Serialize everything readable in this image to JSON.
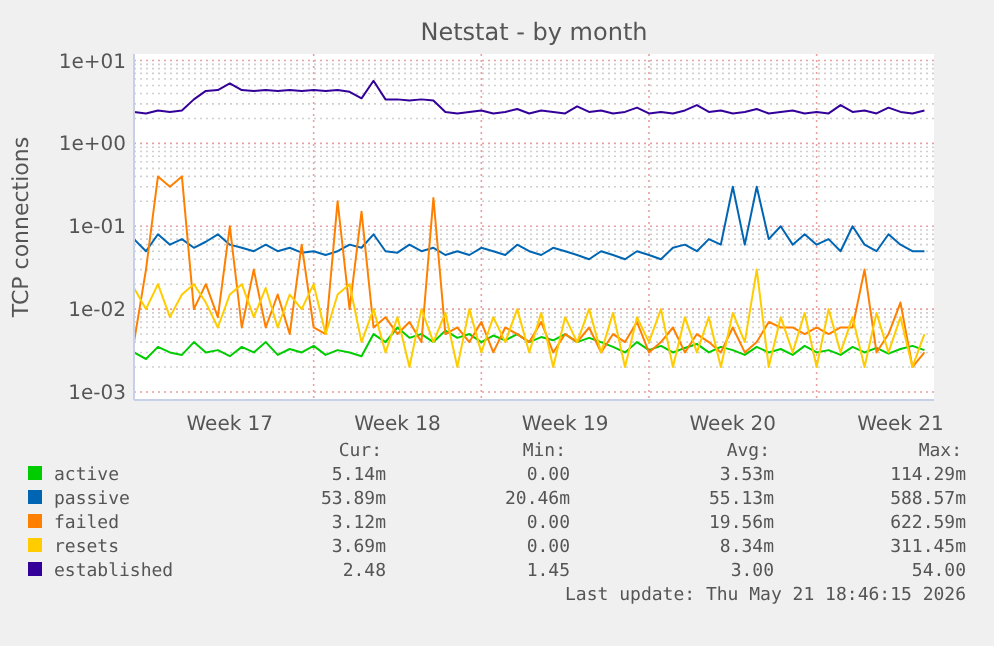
{
  "chart_data": {
    "type": "line",
    "title": "Netstat - by month",
    "ylabel": "TCP connections",
    "log": true,
    "grid": true,
    "legend": "bottom",
    "line_style": "solid",
    "marker": "none",
    "xlim": [
      "2026-04-19T00:00",
      "2026-05-22T09:36"
    ],
    "xticks": [
      {
        "value": "2026-04-23T00:00",
        "label": "Week 17"
      },
      {
        "value": "2026-04-26T12:00",
        "label": null
      },
      {
        "value": "2026-04-30T00:00",
        "label": "Week 18"
      },
      {
        "value": "2026-05-03T12:00",
        "label": null
      },
      {
        "value": "2026-05-07T00:00",
        "label": "Week 19"
      },
      {
        "value": "2026-05-10T12:00",
        "label": null
      },
      {
        "value": "2026-05-14T00:00",
        "label": "Week 20"
      },
      {
        "value": "2026-05-17T12:00",
        "label": null
      },
      {
        "value": "2026-05-21T00:00",
        "label": "Week 21"
      }
    ],
    "ylim": [
      0.0008,
      12
    ],
    "yticks": [
      {
        "value": 0.001,
        "label": "1e-03"
      },
      {
        "value": 0.002,
        "label": null
      },
      {
        "value": 0.003,
        "label": null
      },
      {
        "value": 0.004,
        "label": null
      },
      {
        "value": 0.005,
        "label": null
      },
      {
        "value": 0.006,
        "label": null
      },
      {
        "value": 0.007,
        "label": null
      },
      {
        "value": 0.008,
        "label": null
      },
      {
        "value": 0.009,
        "label": null
      },
      {
        "value": 0.01,
        "label": "1e-02"
      },
      {
        "value": 0.02,
        "label": null
      },
      {
        "value": 0.03,
        "label": null
      },
      {
        "value": 0.04,
        "label": null
      },
      {
        "value": 0.05,
        "label": null
      },
      {
        "value": 0.06,
        "label": null
      },
      {
        "value": 0.07,
        "label": null
      },
      {
        "value": 0.08,
        "label": null
      },
      {
        "value": 0.09,
        "label": null
      },
      {
        "value": 0.1,
        "label": "1e-01"
      },
      {
        "value": 0.2,
        "label": null
      },
      {
        "value": 0.3,
        "label": null
      },
      {
        "value": 0.4,
        "label": null
      },
      {
        "value": 0.5,
        "label": null
      },
      {
        "value": 0.6,
        "label": null
      },
      {
        "value": 0.7,
        "label": null
      },
      {
        "value": 0.8,
        "label": null
      },
      {
        "value": 0.9,
        "label": null
      },
      {
        "value": 1,
        "label": "1e+00"
      },
      {
        "value": 2,
        "label": null
      },
      {
        "value": 3,
        "label": null
      },
      {
        "value": 4,
        "label": null
      },
      {
        "value": 5,
        "label": null
      },
      {
        "value": 6,
        "label": null
      },
      {
        "value": 7,
        "label": null
      },
      {
        "value": 8,
        "label": null
      },
      {
        "value": 9,
        "label": null
      },
      {
        "value": 10,
        "label": "1e+01"
      }
    ],
    "x": [
      "2026-04-19T00:00",
      "2026-04-19T12:00",
      "2026-04-20T00:00",
      "2026-04-20T12:00",
      "2026-04-21T00:00",
      "2026-04-21T12:00",
      "2026-04-22T00:00",
      "2026-04-22T12:00",
      "2026-04-23T00:00",
      "2026-04-23T12:00",
      "2026-04-24T00:00",
      "2026-04-24T12:00",
      "2026-04-25T00:00",
      "2026-04-25T12:00",
      "2026-04-26T00:00",
      "2026-04-26T12:00",
      "2026-04-27T00:00",
      "2026-04-27T12:00",
      "2026-04-28T00:00",
      "2026-04-28T12:00",
      "2026-04-29T00:00",
      "2026-04-29T12:00",
      "2026-04-30T00:00",
      "2026-04-30T12:00",
      "2026-05-01T00:00",
      "2026-05-01T12:00",
      "2026-05-02T00:00",
      "2026-05-02T12:00",
      "2026-05-03T00:00",
      "2026-05-03T12:00",
      "2026-05-04T00:00",
      "2026-05-04T12:00",
      "2026-05-05T00:00",
      "2026-05-05T12:00",
      "2026-05-06T00:00",
      "2026-05-06T12:00",
      "2026-05-07T00:00",
      "2026-05-07T12:00",
      "2026-05-08T00:00",
      "2026-05-08T12:00",
      "2026-05-09T00:00",
      "2026-05-09T12:00",
      "2026-05-10T00:00",
      "2026-05-10T12:00",
      "2026-05-11T00:00",
      "2026-05-11T12:00",
      "2026-05-12T00:00",
      "2026-05-12T12:00",
      "2026-05-13T00:00",
      "2026-05-13T12:00",
      "2026-05-14T00:00",
      "2026-05-14T12:00",
      "2026-05-15T00:00",
      "2026-05-15T12:00",
      "2026-05-16T00:00",
      "2026-05-16T12:00",
      "2026-05-17T00:00",
      "2026-05-17T12:00",
      "2026-05-18T00:00",
      "2026-05-18T12:00",
      "2026-05-19T00:00",
      "2026-05-19T12:00",
      "2026-05-20T00:00",
      "2026-05-20T12:00",
      "2026-05-21T00:00",
      "2026-05-21T12:00",
      "2026-05-22T00:00"
    ],
    "series": [
      {
        "name": "active",
        "color": "#00cc00",
        "values": [
          0.003,
          0.0025,
          0.0035,
          0.003,
          0.0028,
          0.004,
          0.003,
          0.0032,
          0.0027,
          0.0035,
          0.003,
          0.004,
          0.0028,
          0.0033,
          0.003,
          0.0036,
          0.0028,
          0.0032,
          0.003,
          0.0027,
          0.005,
          0.004,
          0.006,
          0.0045,
          0.005,
          0.004,
          0.0055,
          0.0045,
          0.005,
          0.004,
          0.0048,
          0.0042,
          0.005,
          0.004,
          0.0046,
          0.0042,
          0.005,
          0.004,
          0.0045,
          0.004,
          0.0035,
          0.003,
          0.004,
          0.0032,
          0.0036,
          0.003,
          0.0034,
          0.0038,
          0.003,
          0.0035,
          0.0032,
          0.0028,
          0.0035,
          0.003,
          0.0033,
          0.0028,
          0.0036,
          0.003,
          0.0032,
          0.0028,
          0.0035,
          0.003,
          0.0034,
          0.0029,
          0.0033,
          0.0036,
          0.0032
        ]
      },
      {
        "name": "passive",
        "color": "#0066b3",
        "values": [
          0.07,
          0.05,
          0.08,
          0.06,
          0.07,
          0.055,
          0.065,
          0.08,
          0.06,
          0.055,
          0.05,
          0.06,
          0.05,
          0.055,
          0.048,
          0.05,
          0.045,
          0.05,
          0.06,
          0.055,
          0.08,
          0.05,
          0.048,
          0.06,
          0.05,
          0.055,
          0.045,
          0.05,
          0.045,
          0.055,
          0.05,
          0.045,
          0.06,
          0.05,
          0.045,
          0.055,
          0.05,
          0.045,
          0.04,
          0.05,
          0.045,
          0.04,
          0.05,
          0.045,
          0.04,
          0.055,
          0.06,
          0.05,
          0.07,
          0.06,
          0.3,
          0.06,
          0.3,
          0.07,
          0.1,
          0.06,
          0.08,
          0.06,
          0.07,
          0.05,
          0.1,
          0.06,
          0.05,
          0.08,
          0.06,
          0.05,
          0.05
        ]
      },
      {
        "name": "failed",
        "color": "#ff8000",
        "values": [
          0.004,
          0.03,
          0.4,
          0.3,
          0.4,
          0.01,
          0.02,
          0.008,
          0.1,
          0.006,
          0.03,
          0.006,
          0.015,
          0.005,
          0.06,
          0.006,
          0.005,
          0.2,
          0.01,
          0.15,
          0.006,
          0.008,
          0.005,
          0.007,
          0.004,
          0.22,
          0.005,
          0.006,
          0.004,
          0.007,
          0.003,
          0.006,
          0.005,
          0.004,
          0.007,
          0.003,
          0.005,
          0.004,
          0.006,
          0.003,
          0.005,
          0.004,
          0.007,
          0.003,
          0.004,
          0.006,
          0.003,
          0.005,
          0.004,
          0.003,
          0.006,
          0.003,
          0.004,
          0.007,
          0.006,
          0.006,
          0.005,
          0.006,
          0.005,
          0.006,
          0.006,
          0.03,
          0.003,
          0.005,
          0.012,
          0.002,
          0.003
        ]
      },
      {
        "name": "resets",
        "color": "#ffcc00",
        "values": [
          0.018,
          0.01,
          0.02,
          0.008,
          0.015,
          0.02,
          0.012,
          0.006,
          0.015,
          0.02,
          0.008,
          0.018,
          0.006,
          0.015,
          0.01,
          0.02,
          0.005,
          0.015,
          0.02,
          0.004,
          0.01,
          0.003,
          0.008,
          0.002,
          0.01,
          0.004,
          0.009,
          0.002,
          0.01,
          0.003,
          0.008,
          0.004,
          0.01,
          0.003,
          0.009,
          0.002,
          0.008,
          0.004,
          0.01,
          0.003,
          0.009,
          0.002,
          0.008,
          0.004,
          0.01,
          0.002,
          0.008,
          0.003,
          0.008,
          0.002,
          0.009,
          0.004,
          0.03,
          0.002,
          0.008,
          0.003,
          0.009,
          0.002,
          0.01,
          0.003,
          0.008,
          0.002,
          0.009,
          0.003,
          0.008,
          0.002,
          0.005
        ]
      },
      {
        "name": "established",
        "color": "#330099",
        "values": [
          2.4,
          2.3,
          2.5,
          2.4,
          2.5,
          3.4,
          4.3,
          4.4,
          5.3,
          4.4,
          4.3,
          4.4,
          4.3,
          4.4,
          4.3,
          4.4,
          4.3,
          4.4,
          4.2,
          3.5,
          5.7,
          3.4,
          3.4,
          3.3,
          3.4,
          3.3,
          2.4,
          2.3,
          2.4,
          2.5,
          2.3,
          2.4,
          2.6,
          2.3,
          2.5,
          2.4,
          2.3,
          2.8,
          2.4,
          2.5,
          2.3,
          2.4,
          2.7,
          2.3,
          2.4,
          2.3,
          2.5,
          2.9,
          2.4,
          2.5,
          2.3,
          2.4,
          2.6,
          2.3,
          2.4,
          2.5,
          2.3,
          2.4,
          2.3,
          2.9,
          2.4,
          2.5,
          2.3,
          2.7,
          2.4,
          2.3,
          2.5
        ]
      }
    ],
    "annotations": [
      "Cur:",
      "Min:",
      "Avg:",
      "Max:",
      "5.14m",
      "0.00",
      "3.53m",
      "114.29m",
      "53.89m",
      "20.46m",
      "55.13m",
      "588.57m",
      "3.12m",
      "0.00",
      "19.56m",
      "622.59m",
      "3.69m",
      "0.00",
      "8.34m",
      "311.45m",
      "2.48",
      "1.45",
      "3.00",
      "54.00",
      "Last update: Thu May 21 18:46:15 2026"
    ]
  }
}
